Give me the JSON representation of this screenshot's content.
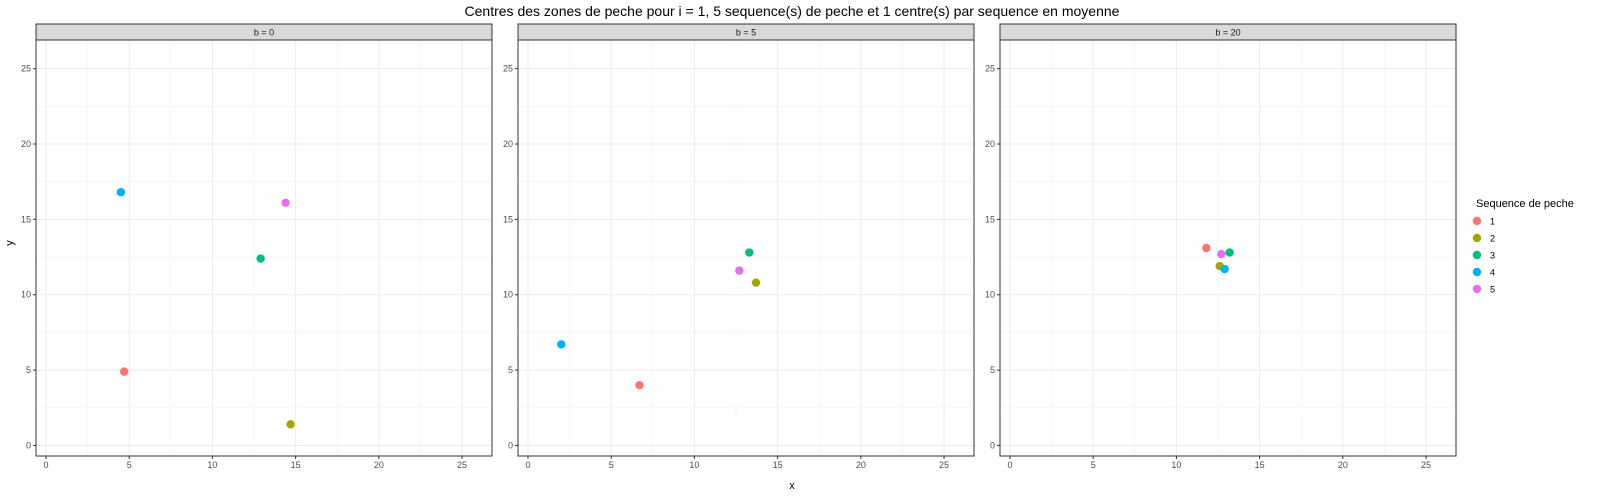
{
  "chart_data": {
    "type": "scatter",
    "title": "Centres des zones de peche pour i = 1, 5 sequence(s) de peche et 1 centre(s) par sequence en moyenne",
    "xlabel": "x",
    "ylabel": "y",
    "xlim": [
      -0.6,
      26.8
    ],
    "ylim": [
      -0.7,
      26.9
    ],
    "x_ticks": [
      0,
      5,
      10,
      15,
      20,
      25
    ],
    "y_ticks": [
      0,
      5,
      10,
      15,
      20,
      25
    ],
    "grid": true,
    "legend": {
      "title": "Sequence de peche",
      "position": "right",
      "items": [
        {
          "label": "1",
          "color": "#F8766D"
        },
        {
          "label": "2",
          "color": "#A3A500"
        },
        {
          "label": "3",
          "color": "#00BF7D"
        },
        {
          "label": "4",
          "color": "#00B0F6"
        },
        {
          "label": "5",
          "color": "#E76BF3"
        }
      ]
    },
    "panels": [
      {
        "label": "b = 0",
        "points": [
          {
            "series": "1",
            "x": 4.7,
            "y": 4.9
          },
          {
            "series": "2",
            "x": 14.7,
            "y": 1.4
          },
          {
            "series": "3",
            "x": 12.9,
            "y": 12.4
          },
          {
            "series": "4",
            "x": 4.5,
            "y": 16.8
          },
          {
            "series": "5",
            "x": 14.4,
            "y": 16.1
          }
        ]
      },
      {
        "label": "b = 5",
        "points": [
          {
            "series": "1",
            "x": 6.7,
            "y": 4.0
          },
          {
            "series": "2",
            "x": 13.7,
            "y": 10.8
          },
          {
            "series": "3",
            "x": 13.3,
            "y": 12.8
          },
          {
            "series": "4",
            "x": 2.0,
            "y": 6.7
          },
          {
            "series": "5",
            "x": 12.7,
            "y": 11.6
          }
        ]
      },
      {
        "label": "b = 20",
        "points": [
          {
            "series": "1",
            "x": 11.8,
            "y": 13.1
          },
          {
            "series": "2",
            "x": 12.6,
            "y": 11.9
          },
          {
            "series": "3",
            "x": 13.2,
            "y": 12.8
          },
          {
            "series": "4",
            "x": 12.9,
            "y": 11.7
          },
          {
            "series": "5",
            "x": 12.7,
            "y": 12.7
          }
        ]
      }
    ]
  }
}
